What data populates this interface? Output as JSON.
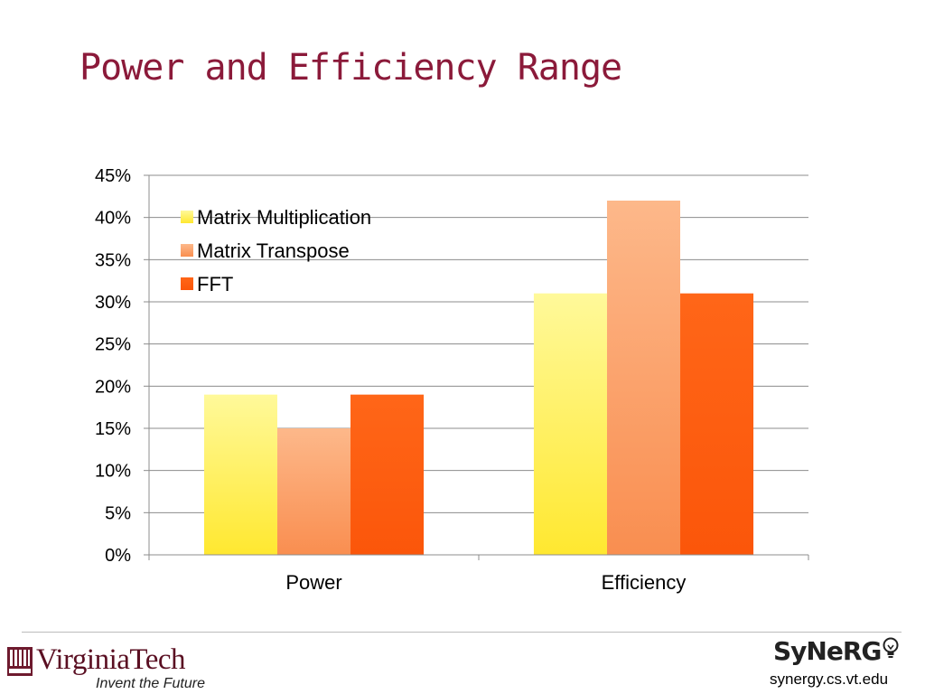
{
  "slide": {
    "title": "Power and Efficiency Range"
  },
  "chart_data": {
    "type": "bar",
    "categories": [
      "Power",
      "Efficiency"
    ],
    "series": [
      {
        "name": "Matrix Multiplication",
        "values": [
          19,
          31
        ],
        "color": "#ffee44"
      },
      {
        "name": "Matrix Transpose",
        "values": [
          15,
          42
        ],
        "color": "#fba066"
      },
      {
        "name": "FFT",
        "values": [
          19,
          31
        ],
        "color": "#ff5e10"
      }
    ],
    "y_unit": "%",
    "ylim": [
      0,
      45
    ],
    "yticks": [
      0,
      5,
      10,
      15,
      20,
      25,
      30,
      35,
      40,
      45
    ],
    "grid": true,
    "legend_position": "top-left"
  },
  "footer": {
    "vt_wordmark": "VirginiaTech",
    "vt_tagline": "Invent the Future",
    "lab_logo": "SyNeRG",
    "lab_url": "synergy.cs.vt.edu"
  }
}
